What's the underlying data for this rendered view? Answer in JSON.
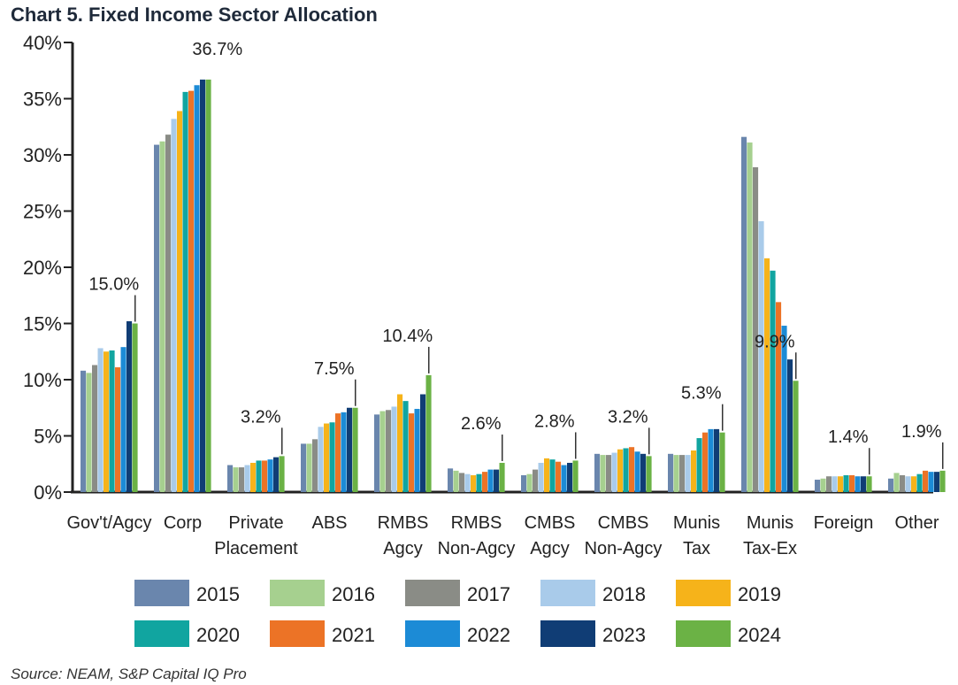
{
  "chart_data": {
    "type": "bar",
    "title": "Chart 5. Fixed Income Sector Allocation",
    "source": "Source: NEAM, S&P Capital IQ Pro",
    "ylim": [
      0,
      40
    ],
    "yticks": [
      0,
      5,
      10,
      15,
      20,
      25,
      30,
      35,
      40
    ],
    "ytick_labels": [
      "0%",
      "5%",
      "10%",
      "15%",
      "20%",
      "25%",
      "30%",
      "35%",
      "40%"
    ],
    "categories": [
      [
        "Gov't/Agcy"
      ],
      [
        "Corp"
      ],
      [
        "Private",
        "Placement"
      ],
      [
        "ABS"
      ],
      [
        "RMBS",
        "Agcy"
      ],
      [
        "RMBS",
        "Non-Agcy"
      ],
      [
        "CMBS",
        "Agcy"
      ],
      [
        "CMBS",
        "Non-Agcy"
      ],
      [
        "Munis",
        "Tax"
      ],
      [
        "Munis",
        "Tax-Ex"
      ],
      [
        "Foreign"
      ],
      [
        "Other"
      ]
    ],
    "series": [
      {
        "name": "2015",
        "color": "#6a86ad",
        "values": [
          10.8,
          30.9,
          2.4,
          4.3,
          6.9,
          2.1,
          1.5,
          3.4,
          3.4,
          31.6,
          1.1,
          1.2
        ]
      },
      {
        "name": "2016",
        "color": "#a6d08f",
        "values": [
          10.6,
          31.2,
          2.2,
          4.3,
          7.2,
          1.9,
          1.6,
          3.3,
          3.3,
          31.1,
          1.2,
          1.7
        ]
      },
      {
        "name": "2017",
        "color": "#8a8c86",
        "values": [
          11.3,
          31.8,
          2.2,
          4.7,
          7.3,
          1.7,
          2.0,
          3.3,
          3.3,
          28.9,
          1.4,
          1.5
        ]
      },
      {
        "name": "2018",
        "color": "#a9cbea",
        "values": [
          12.8,
          33.2,
          2.4,
          5.8,
          7.6,
          1.6,
          2.6,
          3.5,
          3.3,
          24.1,
          1.4,
          1.4
        ]
      },
      {
        "name": "2019",
        "color": "#f6b31a",
        "values": [
          12.5,
          33.9,
          2.6,
          6.1,
          8.7,
          1.5,
          3.0,
          3.8,
          3.7,
          20.8,
          1.4,
          1.4
        ]
      },
      {
        "name": "2020",
        "color": "#11a5a0",
        "values": [
          12.6,
          35.6,
          2.8,
          6.2,
          8.1,
          1.6,
          2.9,
          3.9,
          4.8,
          19.7,
          1.5,
          1.6
        ]
      },
      {
        "name": "2021",
        "color": "#ec7326",
        "values": [
          11.1,
          35.7,
          2.8,
          7.0,
          7.0,
          1.8,
          2.7,
          4.0,
          5.3,
          16.9,
          1.5,
          1.9
        ]
      },
      {
        "name": "2022",
        "color": "#1c8bd6",
        "values": [
          12.9,
          36.2,
          2.9,
          7.1,
          7.4,
          2.0,
          2.4,
          3.6,
          5.6,
          14.8,
          1.4,
          1.8
        ]
      },
      {
        "name": "2023",
        "color": "#103d75",
        "values": [
          15.2,
          36.7,
          3.1,
          7.5,
          8.7,
          2.0,
          2.6,
          3.4,
          5.6,
          11.8,
          1.4,
          1.8
        ]
      },
      {
        "name": "2024",
        "color": "#6bb245",
        "values": [
          15.0,
          36.7,
          3.2,
          7.5,
          10.4,
          2.6,
          2.8,
          3.2,
          5.3,
          9.9,
          1.4,
          1.9
        ]
      }
    ],
    "data_labels": [
      "15.0%",
      "36.7%",
      "3.2%",
      "7.5%",
      "10.4%",
      "2.6%",
      "2.8%",
      "3.2%",
      "5.3%",
      "9.9%",
      "1.4%",
      "1.9%"
    ],
    "legend": {
      "position": "bottom",
      "columns": 5
    }
  }
}
